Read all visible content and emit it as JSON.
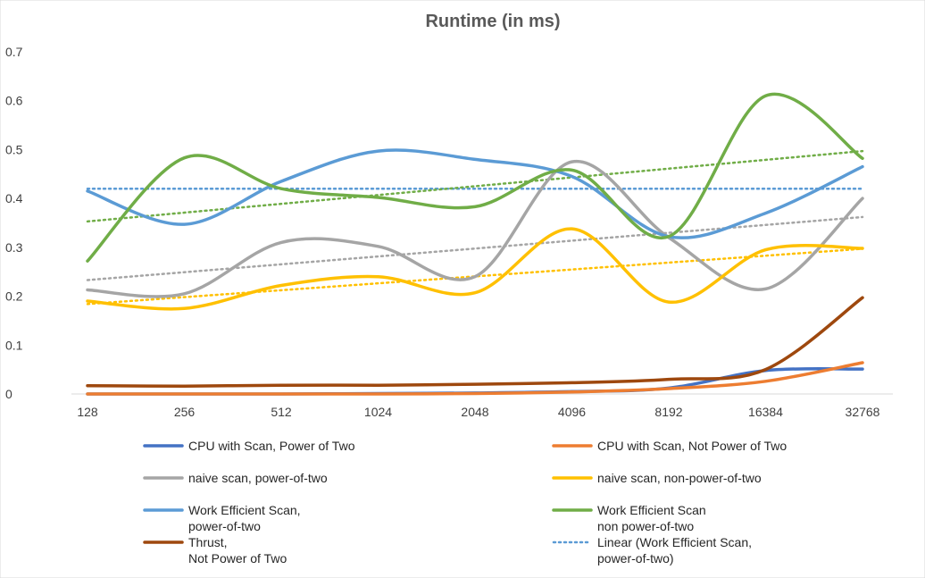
{
  "chart_data": {
    "type": "line",
    "title": "Runtime (in ms)",
    "xlabel": "",
    "ylabel": "",
    "categories": [
      "128",
      "256",
      "512",
      "1024",
      "2048",
      "4096",
      "8192",
      "16384",
      "32768"
    ],
    "ylim": [
      0,
      0.7
    ],
    "yticks": [
      "0",
      "0.1",
      "0.2",
      "0.3",
      "0.4",
      "0.5",
      "0.6",
      "0.7"
    ],
    "grid": false,
    "legend_position": "bottom",
    "series": [
      {
        "name": "CPU with Scan, Power of Two",
        "color": "#4472c4",
        "values": [
          0.0,
          0.0,
          0.0,
          0.001,
          0.002,
          0.005,
          0.012,
          0.048,
          0.051
        ]
      },
      {
        "name": "CPU with Scan, Not Power of Two",
        "color": "#ed7d31",
        "values": [
          0.0,
          0.0,
          0.0,
          0.0,
          0.001,
          0.004,
          0.011,
          0.026,
          0.064
        ]
      },
      {
        "name": "naive scan, power-of-two",
        "color": "#a5a5a5",
        "values": [
          0.213,
          0.205,
          0.31,
          0.302,
          0.24,
          0.475,
          0.32,
          0.215,
          0.4
        ]
      },
      {
        "name": "naive scan, non-power-of-two",
        "color": "#ffc000",
        "values": [
          0.19,
          0.175,
          0.222,
          0.24,
          0.207,
          0.338,
          0.188,
          0.295,
          0.298
        ]
      },
      {
        "name": "Work Efficient Scan,\npower-of-two",
        "color": "#5b9bd5",
        "values": [
          0.415,
          0.347,
          0.435,
          0.497,
          0.48,
          0.445,
          0.322,
          0.37,
          0.465
        ]
      },
      {
        "name": "Work Efficient Scan\nnon power-of-two",
        "color": "#70ad47",
        "values": [
          0.272,
          0.483,
          0.42,
          0.402,
          0.383,
          0.458,
          0.322,
          0.61,
          0.482
        ]
      },
      {
        "name": "Thrust,\nNot Power of Two",
        "color": "#9e480e",
        "values": [
          0.017,
          0.016,
          0.018,
          0.018,
          0.02,
          0.023,
          0.03,
          0.05,
          0.197
        ]
      }
    ],
    "trendlines": [
      {
        "name": "Linear (Work Efficient Scan,\npower-of-two)",
        "of": "Work Efficient Scan,\npower-of-two",
        "color": "#5b9bd5",
        "start": 0.42,
        "end": 0.42,
        "in_legend": true
      },
      {
        "of": "Work Efficient Scan\nnon power-of-two",
        "color": "#70ad47",
        "start": 0.353,
        "end": 0.497,
        "in_legend": false
      },
      {
        "of": "naive scan, power-of-two",
        "color": "#a5a5a5",
        "start": 0.233,
        "end": 0.362,
        "in_legend": false
      },
      {
        "of": "naive scan, non-power-of-two",
        "color": "#ffc000",
        "start": 0.184,
        "end": 0.297,
        "in_legend": false
      }
    ]
  }
}
